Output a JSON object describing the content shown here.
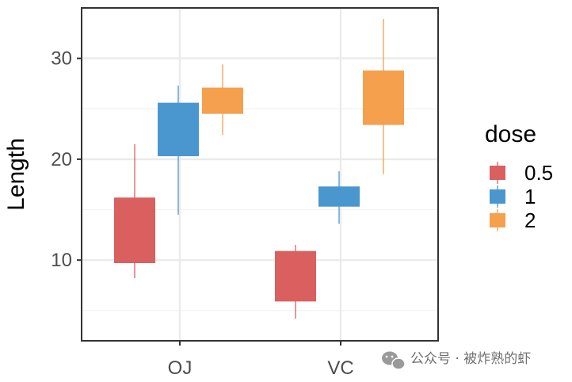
{
  "chart_data": {
    "type": "boxplot",
    "ylabel": "Length",
    "categories": [
      "OJ",
      "VC"
    ],
    "ylim": [
      2,
      35
    ],
    "yticks": [
      10,
      20,
      30
    ],
    "grid": true,
    "legend": {
      "title": "dose",
      "placement": "right",
      "entries": [
        "0.5",
        "1",
        "2"
      ]
    },
    "series": [
      {
        "name": "0.5",
        "color": "#d9605e",
        "boxes": [
          {
            "category": "OJ",
            "whisker_low": 8.2,
            "q1": 9.7,
            "q3": 16.2,
            "whisker_high": 21.5
          },
          {
            "category": "VC",
            "whisker_low": 4.2,
            "q1": 5.9,
            "q3": 10.9,
            "whisker_high": 11.5
          }
        ]
      },
      {
        "name": "1",
        "color": "#4a97d0",
        "boxes": [
          {
            "category": "OJ",
            "whisker_low": 14.5,
            "q1": 20.3,
            "q3": 25.6,
            "whisker_high": 27.3
          },
          {
            "category": "VC",
            "whisker_low": 13.6,
            "q1": 15.3,
            "q3": 17.3,
            "whisker_high": 18.8
          }
        ]
      },
      {
        "name": "2",
        "color": "#f5a04c",
        "boxes": [
          {
            "category": "OJ",
            "whisker_low": 22.4,
            "q1": 24.5,
            "q3": 27.1,
            "whisker_high": 29.4
          },
          {
            "category": "VC",
            "whisker_low": 18.5,
            "q1": 23.4,
            "q3": 28.8,
            "whisker_high": 33.9
          }
        ]
      }
    ]
  },
  "watermark": {
    "icon": "wechat-icon",
    "text": "公众号 · 被炸熟的虾"
  }
}
